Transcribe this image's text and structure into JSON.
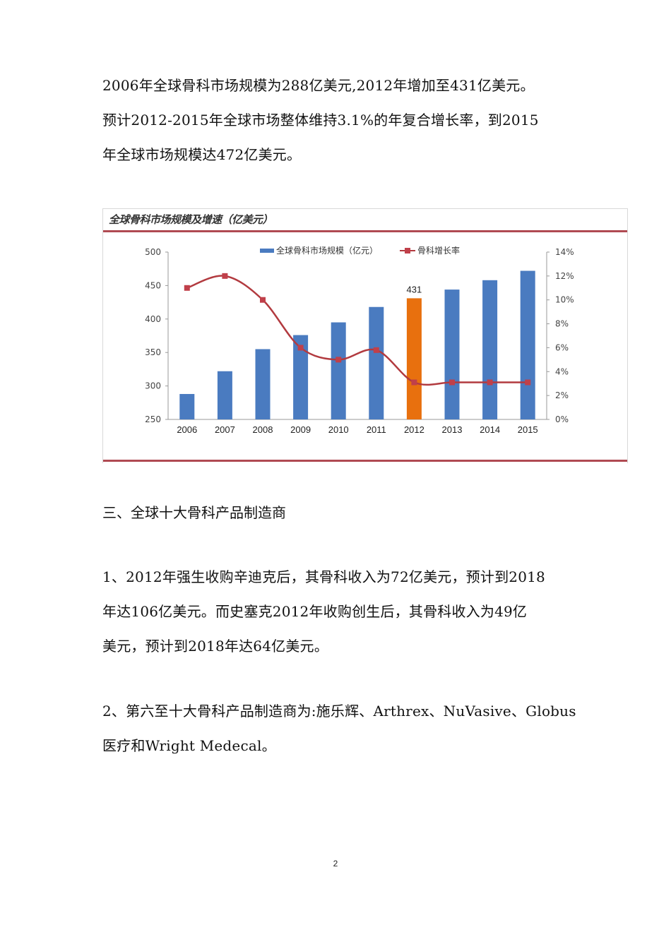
{
  "paragraph1": {
    "lines": [
      "2006年全球骨科市场规模为288亿美元,2012年增加至431亿美元。",
      "预计2012-2015年全球市场整体维持3.1%的年复合增长率，到2015",
      "年全球市场规模达472亿美元。"
    ]
  },
  "chart": {
    "title": "全球骨科市场规模及增速（亿美元）",
    "legend": {
      "bar_label": "全球骨科市场规模（亿元）",
      "line_label": "骨科增长率"
    },
    "highlight_label": "431",
    "left_ticks": [
      "500",
      "450",
      "400",
      "350",
      "300",
      "250"
    ],
    "right_ticks": [
      "14%",
      "12%",
      "10%",
      "8%",
      "6%",
      "4%",
      "2%",
      "0%"
    ],
    "colors": {
      "bar": "#4a7bc0",
      "highlight_bar": "#e8700e",
      "line": "#b23a3f",
      "rule": "#b04a52"
    }
  },
  "chart_data": {
    "type": "bar",
    "title": "全球骨科市场规模及增速（亿美元）",
    "categories": [
      "2006",
      "2007",
      "2008",
      "2009",
      "2010",
      "2011",
      "2012",
      "2013",
      "2014",
      "2015"
    ],
    "series": [
      {
        "name": "全球骨科市场规模（亿元）",
        "type": "bar",
        "axis": "left",
        "values": [
          288,
          322,
          355,
          376,
          395,
          418,
          431,
          444,
          458,
          472
        ]
      },
      {
        "name": "骨科增长率",
        "type": "line",
        "axis": "right",
        "unit": "%",
        "values": [
          11.0,
          12.0,
          10.0,
          6.0,
          5.0,
          5.8,
          3.1,
          3.1,
          3.1,
          3.1
        ]
      }
    ],
    "annotations": [
      {
        "category": "2012",
        "text": "431"
      }
    ],
    "xlabel": "",
    "ylabel": "",
    "ylim": [
      250,
      500
    ],
    "y2lim": [
      0,
      14
    ],
    "grid": false,
    "legend_position": "top"
  },
  "heading3": "三、全球十大骨科产品制造商",
  "paragraph2": {
    "lines": [
      "1、2012年强生收购辛迪克后，其骨科收入为72亿美元，预计到2018",
      "年达106亿美元。而史塞克2012年收购创生后，其骨科收入为49亿",
      "美元，预计到2018年达64亿美元。"
    ]
  },
  "paragraph3": {
    "lines": [
      "2、第六至十大骨科产品制造商为:施乐辉、Arthrex、NuVasive、Globus",
      "医疗和Wright Medecal。"
    ]
  },
  "page_number": "2"
}
